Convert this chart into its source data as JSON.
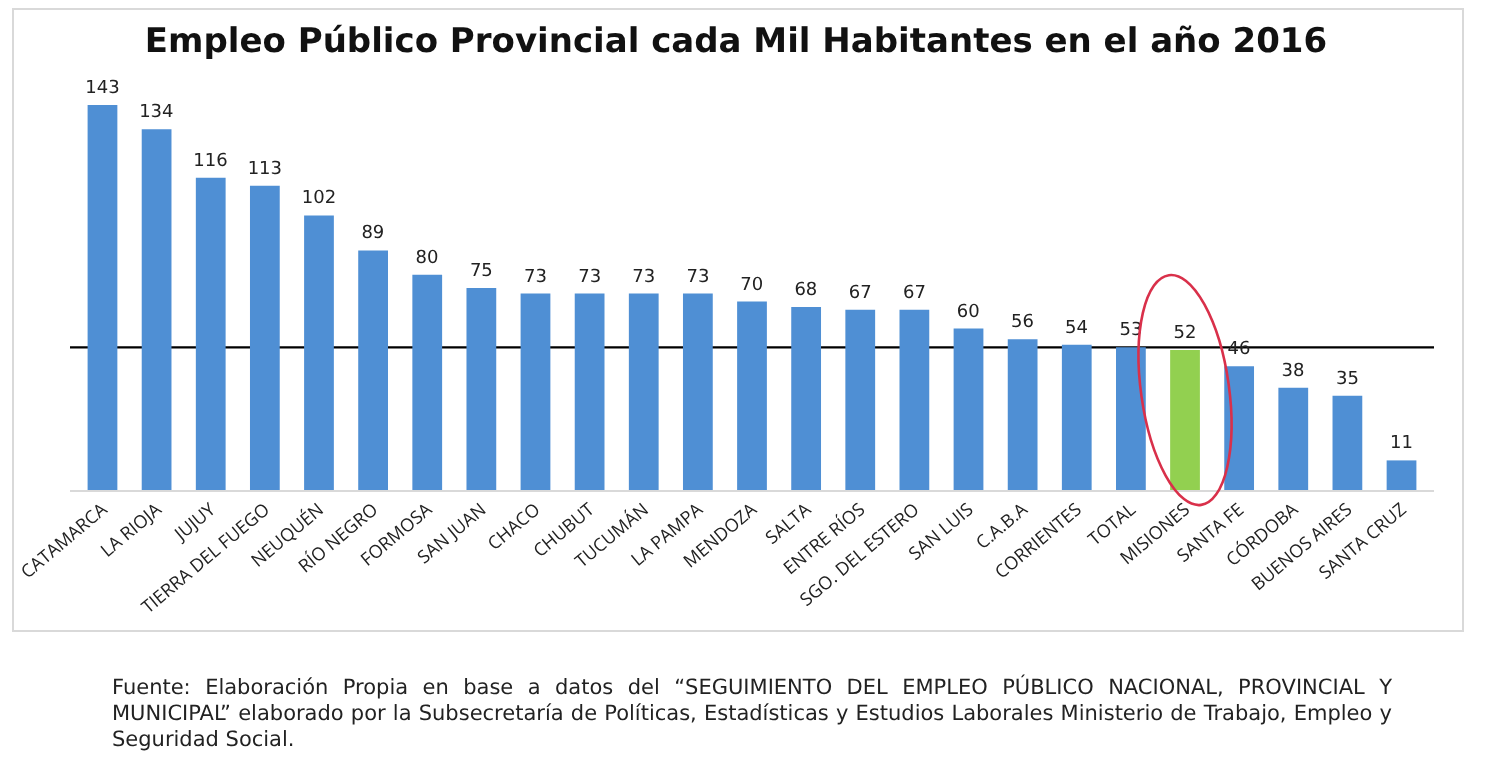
{
  "chart_data": {
    "type": "bar",
    "title": "Empleo Público Provincial cada Mil Habitantes en el año 2016",
    "categories": [
      "CATAMARCA",
      "LA RIOJA",
      "JUJUY",
      "TIERRA DEL FUEGO",
      "NEUQUÉN",
      "RÍO NEGRO",
      "FORMOSA",
      "SAN JUAN",
      "CHACO",
      "CHUBUT",
      "TUCUMÁN",
      "LA PAMPA",
      "MENDOZA",
      "SALTA",
      "ENTRE RÍOS",
      "SGO. DEL ESTERO",
      "SAN LUIS",
      "C.A.B.A",
      "CORRIENTES",
      "TOTAL",
      "MISIONES",
      "SANTA FE",
      "CÓRDOBA",
      "BUENOS AIRES",
      "SANTA CRUZ"
    ],
    "values": [
      143,
      134,
      116,
      113,
      102,
      89,
      80,
      75,
      73,
      73,
      73,
      73,
      70,
      68,
      67,
      67,
      60,
      56,
      54,
      53,
      52,
      46,
      38,
      35,
      11
    ],
    "colors": [
      "#4f8fd4",
      "#4f8fd4",
      "#4f8fd4",
      "#4f8fd4",
      "#4f8fd4",
      "#4f8fd4",
      "#4f8fd4",
      "#4f8fd4",
      "#4f8fd4",
      "#4f8fd4",
      "#4f8fd4",
      "#4f8fd4",
      "#4f8fd4",
      "#4f8fd4",
      "#4f8fd4",
      "#4f8fd4",
      "#4f8fd4",
      "#4f8fd4",
      "#4f8fd4",
      "#4f8fd4",
      "#92d050",
      "#4f8fd4",
      "#4f8fd4",
      "#4f8fd4",
      "#4f8fd4"
    ],
    "data_labels": true,
    "ref_lines": [
      {
        "axis": "y",
        "value": 53,
        "color": "#000000"
      }
    ],
    "annotations": [
      "Fuente: Elaboración Propia en base a datos del “SEGUIMIENTO DEL EMPLEO PÚBLICO NACIONAL, PROVINCIAL Y MUNICIPAL” elaborado por  la Subsecretaría de Políticas, Estadísticas y Estudios Laborales Ministerio de Trabajo, Empleo y Seguridad Social."
    ],
    "grid": false
  }
}
